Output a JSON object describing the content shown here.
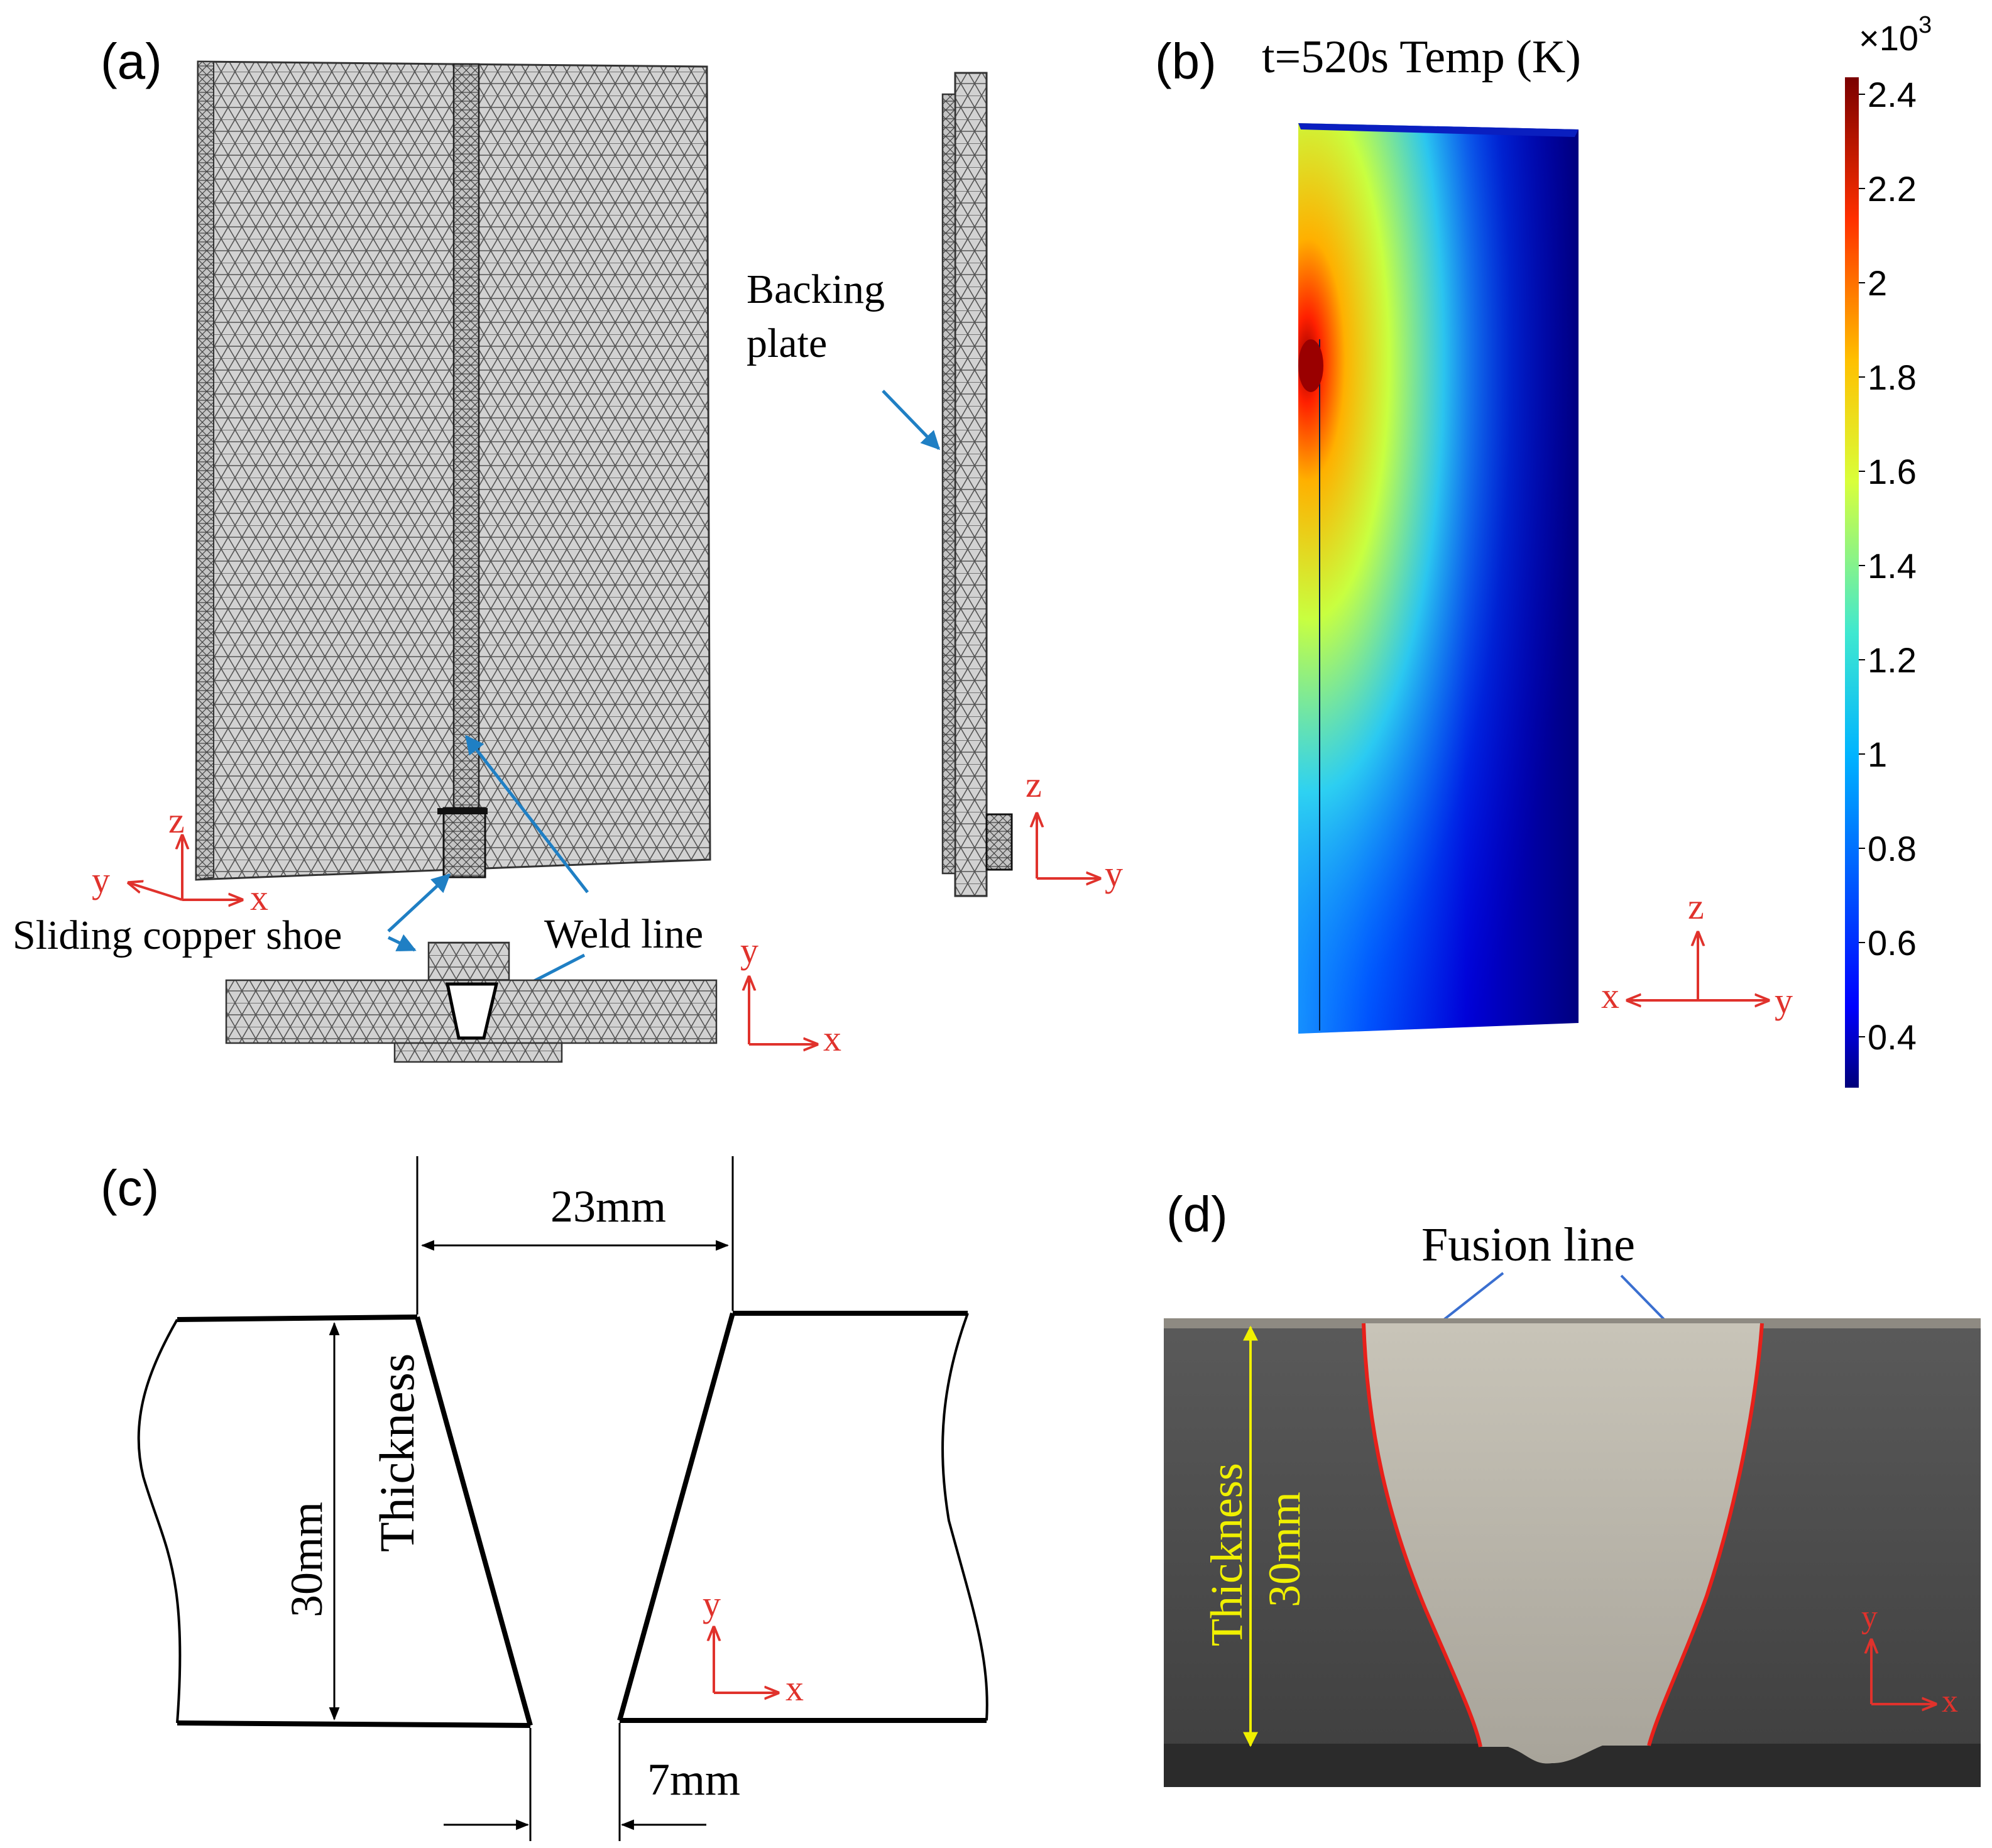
{
  "panels": {
    "a": {
      "label": "(a)",
      "backing_plate_line1": "Backing",
      "backing_plate_line2": "plate",
      "sliding_shoe": "Sliding copper shoe",
      "weld_line": "Weld line",
      "axes_main": {
        "z": "z",
        "y": "y",
        "x": "x"
      },
      "axes_side": {
        "z": "z",
        "y": "y"
      },
      "axes_cross": {
        "y": "y",
        "x": "x"
      }
    },
    "b": {
      "label": "(b)",
      "title": "t=520s  Temp (K)",
      "colorbar_multiplier_base": "×10",
      "colorbar_multiplier_exp": "3",
      "colorbar_ticks": [
        "2.4",
        "2.2",
        "2",
        "1.8",
        "1.6",
        "1.4",
        "1.2",
        "1",
        "0.8",
        "0.6",
        "0.4"
      ],
      "colormap_hex": [
        "#00007a",
        "#0000ff",
        "#00b4ff",
        "#3fe8d0",
        "#d9ff3a",
        "#ffc000",
        "#ff3000",
        "#7a0000"
      ],
      "axes": {
        "z": "z",
        "x": "x",
        "y": "y"
      }
    },
    "c": {
      "label": "(c)",
      "top_gap": "23mm",
      "bottom_gap": "7mm",
      "thickness_value": "30mm",
      "thickness_label": "Thickness",
      "axes": {
        "y": "y",
        "x": "x"
      }
    },
    "d": {
      "label": "(d)",
      "fusion_line": "Fusion line",
      "thickness_label": "Thickness",
      "thickness_value": "30mm",
      "axes": {
        "y": "y",
        "x": "x"
      }
    }
  }
}
